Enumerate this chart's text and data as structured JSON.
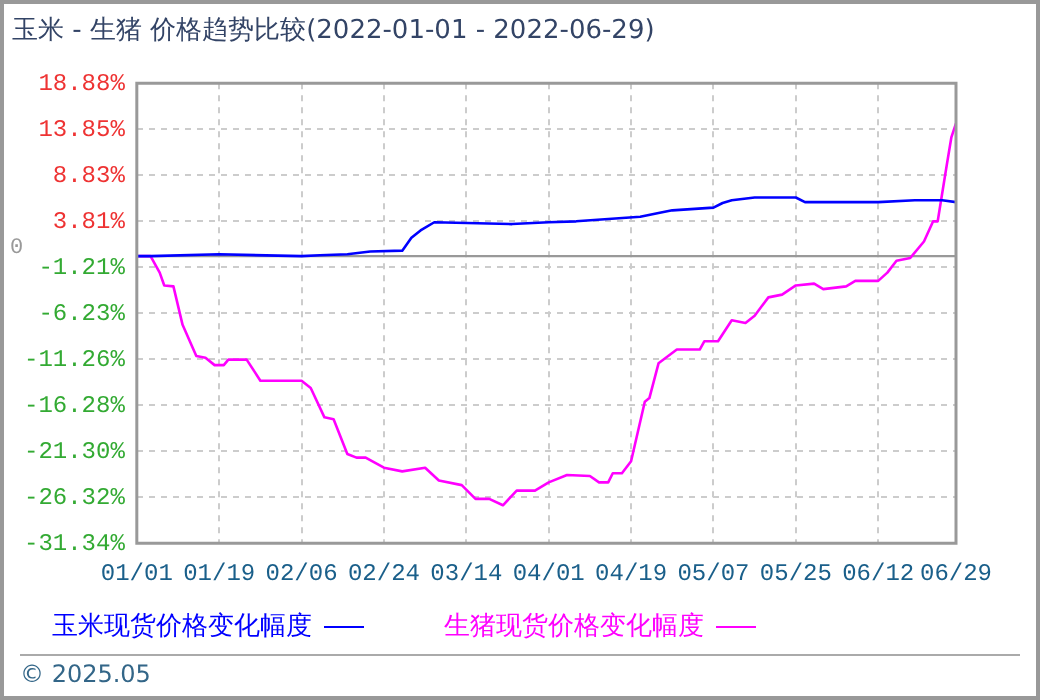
{
  "chart_data": {
    "type": "line",
    "title": "玉米 - 生猪 价格趋势比较(2022-01-01 - 2022-06-29)",
    "xlim": [
      "2022-01-01",
      "2022-06-29"
    ],
    "xticks": [
      {
        "value": "2022-01-01",
        "label": "01/01"
      },
      {
        "value": "2022-01-19",
        "label": "01/19"
      },
      {
        "value": "2022-02-06",
        "label": "02/06"
      },
      {
        "value": "2022-02-24",
        "label": "02/24"
      },
      {
        "value": "2022-03-14",
        "label": "03/14"
      },
      {
        "value": "2022-04-01",
        "label": "04/01"
      },
      {
        "value": "2022-04-19",
        "label": "04/19"
      },
      {
        "value": "2022-05-07",
        "label": "05/07"
      },
      {
        "value": "2022-05-25",
        "label": "05/25"
      },
      {
        "value": "2022-06-12",
        "label": "06/12"
      },
      {
        "value": "2022-06-29",
        "label": "06/29"
      }
    ],
    "ylim": [
      -31.34,
      18.88
    ],
    "yticks": [
      {
        "value": 18.88,
        "label": "18.88%"
      },
      {
        "value": 13.85,
        "label": "13.85%"
      },
      {
        "value": 8.83,
        "label": "8.83%"
      },
      {
        "value": 3.81,
        "label": "3.81%"
      },
      {
        "value": -1.21,
        "label": "-1.21%"
      },
      {
        "value": -6.23,
        "label": "-6.23%"
      },
      {
        "value": -11.26,
        "label": "-11.26%"
      },
      {
        "value": -16.28,
        "label": "-16.28%"
      },
      {
        "value": -21.3,
        "label": "-21.30%"
      },
      {
        "value": -26.32,
        "label": "-26.32%"
      },
      {
        "value": -31.34,
        "label": "-31.34%"
      }
    ],
    "grid": true,
    "legend": "bottom",
    "marker": "none",
    "line_style": "solid",
    "ref_lines": [
      {
        "axis": "y",
        "value": 0,
        "label": "0",
        "color": "#999999"
      }
    ],
    "annotations": [
      "© 2025.05"
    ],
    "series": [
      {
        "name": "玉米现货价格变化幅度",
        "color": "#0000ff",
        "x": [
          "2022-01-01",
          "2022-01-04",
          "2022-01-19",
          "2022-02-06",
          "2022-02-10",
          "2022-02-16",
          "2022-02-21",
          "2022-02-28",
          "2022-03-02",
          "2022-03-04",
          "2022-03-07",
          "2022-03-24",
          "2022-04-01",
          "2022-04-07",
          "2022-04-21",
          "2022-04-25",
          "2022-04-28",
          "2022-05-07",
          "2022-05-09",
          "2022-05-11",
          "2022-05-16",
          "2022-05-25",
          "2022-05-27",
          "2022-06-12",
          "2022-06-20",
          "2022-06-26",
          "2022-06-29"
        ],
        "values": [
          0,
          0,
          0.2,
          0,
          0.1,
          0.2,
          0.5,
          0.6,
          2.0,
          2.8,
          3.7,
          3.5,
          3.7,
          3.8,
          4.3,
          4.7,
          5.0,
          5.3,
          5.8,
          6.1,
          6.4,
          6.4,
          5.9,
          5.9,
          6.1,
          6.1,
          5.9
        ]
      },
      {
        "name": "生猪现货价格变化幅度",
        "color": "#ff00ff",
        "x": [
          "2022-01-01",
          "2022-01-04",
          "2022-01-06",
          "2022-01-07",
          "2022-01-09",
          "2022-01-11",
          "2022-01-14",
          "2022-01-16",
          "2022-01-18",
          "2022-01-20",
          "2022-01-21",
          "2022-01-25",
          "2022-01-28",
          "2022-02-06",
          "2022-02-08",
          "2022-02-11",
          "2022-02-13",
          "2022-02-16",
          "2022-02-18",
          "2022-02-20",
          "2022-02-24",
          "2022-02-28",
          "2022-03-05",
          "2022-03-08",
          "2022-03-13",
          "2022-03-16",
          "2022-03-19",
          "2022-03-22",
          "2022-03-25",
          "2022-03-29",
          "2022-04-01",
          "2022-04-05",
          "2022-04-10",
          "2022-04-12",
          "2022-04-14",
          "2022-04-15",
          "2022-04-17",
          "2022-04-19",
          "2022-04-22",
          "2022-04-23",
          "2022-04-25",
          "2022-04-29",
          "2022-05-04",
          "2022-05-05",
          "2022-05-08",
          "2022-05-11",
          "2022-05-14",
          "2022-05-16",
          "2022-05-19",
          "2022-05-22",
          "2022-05-25",
          "2022-05-29",
          "2022-05-31",
          "2022-06-05",
          "2022-06-07",
          "2022-06-12",
          "2022-06-14",
          "2022-06-16",
          "2022-06-19",
          "2022-06-22",
          "2022-06-24",
          "2022-06-25",
          "2022-06-27",
          "2022-06-28",
          "2022-06-29"
        ],
        "values": [
          0,
          0,
          -1.8,
          -3.2,
          -3.3,
          -7.5,
          -10.9,
          -11.1,
          -11.9,
          -11.9,
          -11.3,
          -11.3,
          -13.6,
          -13.6,
          -14.4,
          -17.6,
          -17.8,
          -21.6,
          -22.0,
          -22.0,
          -23.1,
          -23.5,
          -23.1,
          -24.5,
          -25.0,
          -26.5,
          -26.5,
          -27.2,
          -25.6,
          -25.6,
          -24.7,
          -23.9,
          -24.0,
          -24.7,
          -24.7,
          -23.7,
          -23.7,
          -22.4,
          -15.9,
          -15.5,
          -11.7,
          -10.2,
          -10.2,
          -9.3,
          -9.3,
          -7.0,
          -7.3,
          -6.5,
          -4.5,
          -4.2,
          -3.2,
          -3.0,
          -3.6,
          -3.3,
          -2.7,
          -2.7,
          -1.8,
          -0.5,
          -0.2,
          1.6,
          3.8,
          3.8,
          10.0,
          13.0,
          14.5
        ]
      }
    ]
  }
}
